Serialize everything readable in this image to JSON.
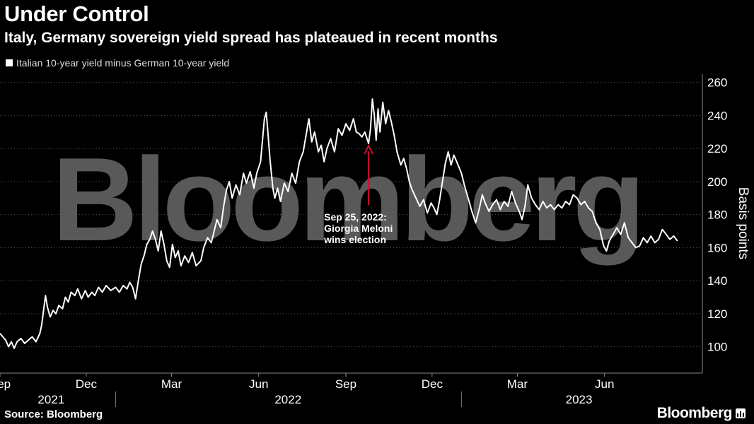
{
  "header": {
    "title": "Under Control",
    "subtitle": "Italy, Germany sovereign yield spread has plateaued in recent months"
  },
  "footer": {
    "source": "Source: Bloomberg",
    "brand": "Bloomberg",
    "brand_icon": "bar-chart-icon"
  },
  "watermark": "Bloomberg",
  "colors": {
    "background": "#000000",
    "line": "#ffffff",
    "grid": "#555555",
    "annotation_arrow": "#c8102e",
    "watermark": "#595959"
  },
  "chart_data": {
    "type": "line",
    "title": "Under Control",
    "subtitle": "Italy, Germany sovereign yield spread has plateaued in recent months",
    "ylabel": "Basis points",
    "xlabel": "",
    "ylim": [
      84,
      265
    ],
    "xlim": [
      "2021-09-01",
      "2023-09-10"
    ],
    "yticks": [
      100,
      120,
      140,
      160,
      180,
      200,
      220,
      240,
      260
    ],
    "grid": "horizontal dotted",
    "legend_position": "top-left",
    "x_month_ticks": [
      {
        "label": "Sep",
        "date": "2021-09-01"
      },
      {
        "label": "Dec",
        "date": "2021-12-01"
      },
      {
        "label": "Mar",
        "date": "2022-03-01"
      },
      {
        "label": "Jun",
        "date": "2022-06-01"
      },
      {
        "label": "Sep",
        "date": "2022-09-01"
      },
      {
        "label": "Dec",
        "date": "2022-12-01"
      },
      {
        "label": "Mar",
        "date": "2023-03-01"
      },
      {
        "label": "Jun",
        "date": "2023-06-01"
      }
    ],
    "x_year_labels": [
      {
        "label": "2021",
        "center": "2021-10-25"
      },
      {
        "label": "2022",
        "center": "2022-07-02"
      },
      {
        "label": "2023",
        "center": "2023-05-05"
      }
    ],
    "x_year_dividers": [
      "2022-01-01",
      "2023-01-01"
    ],
    "series": [
      {
        "name": "Italian 10-year yield minus German 10-year yield",
        "points": [
          [
            "2021-09-01",
            108
          ],
          [
            "2021-09-04",
            106
          ],
          [
            "2021-09-07",
            104
          ],
          [
            "2021-09-10",
            100
          ],
          [
            "2021-09-13",
            103
          ],
          [
            "2021-09-16",
            99
          ],
          [
            "2021-09-19",
            103
          ],
          [
            "2021-09-23",
            105
          ],
          [
            "2021-09-27",
            102
          ],
          [
            "2021-10-01",
            104
          ],
          [
            "2021-10-05",
            106
          ],
          [
            "2021-10-09",
            103
          ],
          [
            "2021-10-13",
            108
          ],
          [
            "2021-10-15",
            113
          ],
          [
            "2021-10-17",
            122
          ],
          [
            "2021-10-19",
            131
          ],
          [
            "2021-10-21",
            124
          ],
          [
            "2021-10-24",
            118
          ],
          [
            "2021-10-27",
            122
          ],
          [
            "2021-10-30",
            120
          ],
          [
            "2021-11-02",
            125
          ],
          [
            "2021-11-06",
            123
          ],
          [
            "2021-11-09",
            130
          ],
          [
            "2021-11-12",
            127
          ],
          [
            "2021-11-15",
            133
          ],
          [
            "2021-11-19",
            131
          ],
          [
            "2021-11-22",
            135
          ],
          [
            "2021-11-26",
            129
          ],
          [
            "2021-11-30",
            134
          ],
          [
            "2021-12-03",
            130
          ],
          [
            "2021-12-07",
            133
          ],
          [
            "2021-12-10",
            131
          ],
          [
            "2021-12-14",
            136
          ],
          [
            "2021-12-18",
            133
          ],
          [
            "2021-12-22",
            137
          ],
          [
            "2021-12-27",
            134
          ],
          [
            "2022-01-01",
            136
          ],
          [
            "2022-01-05",
            133
          ],
          [
            "2022-01-09",
            137
          ],
          [
            "2022-01-13",
            135
          ],
          [
            "2022-01-16",
            139
          ],
          [
            "2022-01-19",
            136
          ],
          [
            "2022-01-22",
            129
          ],
          [
            "2022-01-25",
            140
          ],
          [
            "2022-01-28",
            150
          ],
          [
            "2022-01-31",
            155
          ],
          [
            "2022-02-03",
            162
          ],
          [
            "2022-02-06",
            165
          ],
          [
            "2022-02-09",
            170
          ],
          [
            "2022-02-12",
            165
          ],
          [
            "2022-02-15",
            158
          ],
          [
            "2022-02-18",
            170
          ],
          [
            "2022-02-21",
            162
          ],
          [
            "2022-02-24",
            152
          ],
          [
            "2022-02-27",
            148
          ],
          [
            "2022-03-02",
            162
          ],
          [
            "2022-03-05",
            154
          ],
          [
            "2022-03-08",
            158
          ],
          [
            "2022-03-11",
            149
          ],
          [
            "2022-03-15",
            155
          ],
          [
            "2022-03-19",
            151
          ],
          [
            "2022-03-23",
            157
          ],
          [
            "2022-03-27",
            149
          ],
          [
            "2022-04-01",
            152
          ],
          [
            "2022-04-04",
            160
          ],
          [
            "2022-04-08",
            166
          ],
          [
            "2022-04-12",
            163
          ],
          [
            "2022-04-15",
            170
          ],
          [
            "2022-04-18",
            177
          ],
          [
            "2022-04-22",
            172
          ],
          [
            "2022-04-25",
            185
          ],
          [
            "2022-04-28",
            195
          ],
          [
            "2022-05-01",
            200
          ],
          [
            "2022-05-04",
            190
          ],
          [
            "2022-05-08",
            198
          ],
          [
            "2022-05-12",
            192
          ],
          [
            "2022-05-16",
            205
          ],
          [
            "2022-05-19",
            199
          ],
          [
            "2022-05-23",
            206
          ],
          [
            "2022-05-27",
            196
          ],
          [
            "2022-05-30",
            205
          ],
          [
            "2022-06-03",
            212
          ],
          [
            "2022-06-05",
            225
          ],
          [
            "2022-06-07",
            238
          ],
          [
            "2022-06-09",
            242
          ],
          [
            "2022-06-11",
            228
          ],
          [
            "2022-06-13",
            213
          ],
          [
            "2022-06-16",
            196
          ],
          [
            "2022-06-18",
            190
          ],
          [
            "2022-06-21",
            196
          ],
          [
            "2022-06-24",
            188
          ],
          [
            "2022-06-28",
            199
          ],
          [
            "2022-07-02",
            194
          ],
          [
            "2022-07-06",
            205
          ],
          [
            "2022-07-10",
            199
          ],
          [
            "2022-07-14",
            212
          ],
          [
            "2022-07-18",
            218
          ],
          [
            "2022-07-21",
            228
          ],
          [
            "2022-07-24",
            238
          ],
          [
            "2022-07-27",
            224
          ],
          [
            "2022-07-30",
            230
          ],
          [
            "2022-08-03",
            218
          ],
          [
            "2022-08-06",
            222
          ],
          [
            "2022-08-09",
            212
          ],
          [
            "2022-08-12",
            220
          ],
          [
            "2022-08-16",
            226
          ],
          [
            "2022-08-20",
            218
          ],
          [
            "2022-08-24",
            232
          ],
          [
            "2022-08-28",
            228
          ],
          [
            "2022-09-01",
            235
          ],
          [
            "2022-09-05",
            231
          ],
          [
            "2022-09-09",
            238
          ],
          [
            "2022-09-12",
            230
          ],
          [
            "2022-09-15",
            229
          ],
          [
            "2022-09-18",
            227
          ],
          [
            "2022-09-21",
            230
          ],
          [
            "2022-09-25",
            223
          ],
          [
            "2022-09-27",
            232
          ],
          [
            "2022-09-29",
            250
          ],
          [
            "2022-10-01",
            240
          ],
          [
            "2022-10-03",
            225
          ],
          [
            "2022-10-05",
            244
          ],
          [
            "2022-10-07",
            230
          ],
          [
            "2022-10-10",
            248
          ],
          [
            "2022-10-13",
            235
          ],
          [
            "2022-10-16",
            243
          ],
          [
            "2022-10-19",
            236
          ],
          [
            "2022-10-22",
            228
          ],
          [
            "2022-10-25",
            218
          ],
          [
            "2022-10-29",
            210
          ],
          [
            "2022-11-01",
            214
          ],
          [
            "2022-11-04",
            208
          ],
          [
            "2022-11-07",
            200
          ],
          [
            "2022-11-10",
            195
          ],
          [
            "2022-11-14",
            190
          ],
          [
            "2022-11-18",
            185
          ],
          [
            "2022-11-22",
            189
          ],
          [
            "2022-11-26",
            181
          ],
          [
            "2022-11-30",
            187
          ],
          [
            "2022-12-03",
            184
          ],
          [
            "2022-12-06",
            180
          ],
          [
            "2022-12-09",
            189
          ],
          [
            "2022-12-12",
            200
          ],
          [
            "2022-12-15",
            211
          ],
          [
            "2022-12-18",
            218
          ],
          [
            "2022-12-21",
            210
          ],
          [
            "2022-12-24",
            216
          ],
          [
            "2022-12-27",
            212
          ],
          [
            "2023-01-01",
            205
          ],
          [
            "2023-01-04",
            198
          ],
          [
            "2023-01-08",
            190
          ],
          [
            "2023-01-12",
            182
          ],
          [
            "2023-01-16",
            175
          ],
          [
            "2023-01-20",
            184
          ],
          [
            "2023-01-23",
            192
          ],
          [
            "2023-01-26",
            187
          ],
          [
            "2023-01-30",
            182
          ],
          [
            "2023-02-03",
            186
          ],
          [
            "2023-02-07",
            189
          ],
          [
            "2023-02-11",
            183
          ],
          [
            "2023-02-15",
            188
          ],
          [
            "2023-02-19",
            185
          ],
          [
            "2023-02-23",
            194
          ],
          [
            "2023-02-27",
            187
          ],
          [
            "2023-03-03",
            182
          ],
          [
            "2023-03-06",
            177
          ],
          [
            "2023-03-09",
            185
          ],
          [
            "2023-03-12",
            198
          ],
          [
            "2023-03-16",
            190
          ],
          [
            "2023-03-20",
            186
          ],
          [
            "2023-03-24",
            183
          ],
          [
            "2023-03-28",
            188
          ],
          [
            "2023-04-01",
            184
          ],
          [
            "2023-04-05",
            186
          ],
          [
            "2023-04-09",
            183
          ],
          [
            "2023-04-13",
            186
          ],
          [
            "2023-04-17",
            184
          ],
          [
            "2023-04-21",
            188
          ],
          [
            "2023-04-25",
            186
          ],
          [
            "2023-04-29",
            192
          ],
          [
            "2023-05-03",
            190
          ],
          [
            "2023-05-07",
            186
          ],
          [
            "2023-05-11",
            188
          ],
          [
            "2023-05-15",
            184
          ],
          [
            "2023-05-19",
            182
          ],
          [
            "2023-05-23",
            175
          ],
          [
            "2023-05-27",
            171
          ],
          [
            "2023-05-31",
            161
          ],
          [
            "2023-06-03",
            158
          ],
          [
            "2023-06-06",
            164
          ],
          [
            "2023-06-10",
            168
          ],
          [
            "2023-06-14",
            172
          ],
          [
            "2023-06-18",
            168
          ],
          [
            "2023-06-22",
            175
          ],
          [
            "2023-06-26",
            166
          ],
          [
            "2023-06-30",
            163
          ],
          [
            "2023-07-04",
            160
          ],
          [
            "2023-07-08",
            161
          ],
          [
            "2023-07-12",
            166
          ],
          [
            "2023-07-16",
            163
          ],
          [
            "2023-07-20",
            167
          ],
          [
            "2023-07-24",
            163
          ],
          [
            "2023-07-28",
            165
          ],
          [
            "2023-08-01",
            171
          ],
          [
            "2023-08-05",
            168
          ],
          [
            "2023-08-09",
            165
          ],
          [
            "2023-08-13",
            167
          ],
          [
            "2023-08-17",
            164
          ]
        ]
      }
    ],
    "annotations": [
      {
        "date": "2022-09-25",
        "value": 223,
        "label_lines": [
          "Sep 25, 2022:",
          "Giorgia Meloni",
          "wins election"
        ],
        "arrow": "from-below"
      }
    ]
  }
}
